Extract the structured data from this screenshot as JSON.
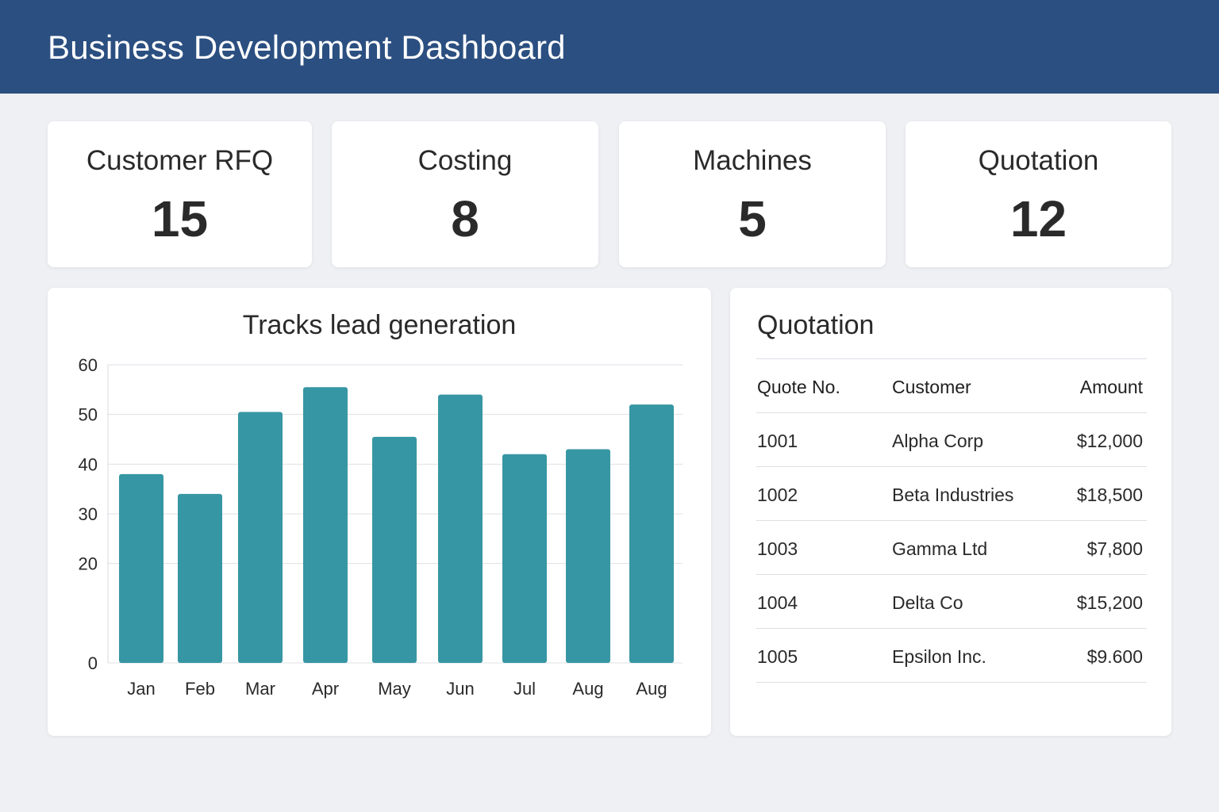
{
  "header": {
    "title": "Business Development Dashboard"
  },
  "kpis": [
    {
      "label": "Customer RFQ",
      "value": "15"
    },
    {
      "label": "Costing",
      "value": "8"
    },
    {
      "label": "Machines",
      "value": "5"
    },
    {
      "label": "Quotation",
      "value": "12"
    }
  ],
  "chart_data": {
    "type": "bar",
    "title": "Tracks lead generation",
    "xlabel": "",
    "ylabel": "",
    "categories": [
      "Jan",
      "Feb",
      "Mar",
      "Apr",
      "May",
      "Jun",
      "Jul",
      "Aug",
      "Aug"
    ],
    "values": [
      38,
      34,
      50.5,
      55.5,
      45.5,
      54,
      42,
      43,
      52
    ],
    "ylim": [
      0,
      60
    ],
    "yticks": [
      "0",
      "20",
      "30",
      "40",
      "50",
      "60"
    ],
    "grid": true,
    "bar_color": "#3796a3"
  },
  "quotation": {
    "title": "Quotation",
    "columns": [
      "Quote No.",
      "Customer",
      "Amount"
    ],
    "rows": [
      [
        "1001",
        "Alpha Corp",
        "$12,000"
      ],
      [
        "1002",
        "Beta Industries",
        "$18,500"
      ],
      [
        "1003",
        "Gamma Ltd",
        "$7,800"
      ],
      [
        "1004",
        "Delta Co",
        "$15,200"
      ],
      [
        "1005",
        "Epsilon Inc.",
        "$9.600"
      ]
    ]
  },
  "colors": {
    "header_bg": "#2b4f80",
    "page_bg": "#eef0f3",
    "bar": "#3796a3"
  }
}
